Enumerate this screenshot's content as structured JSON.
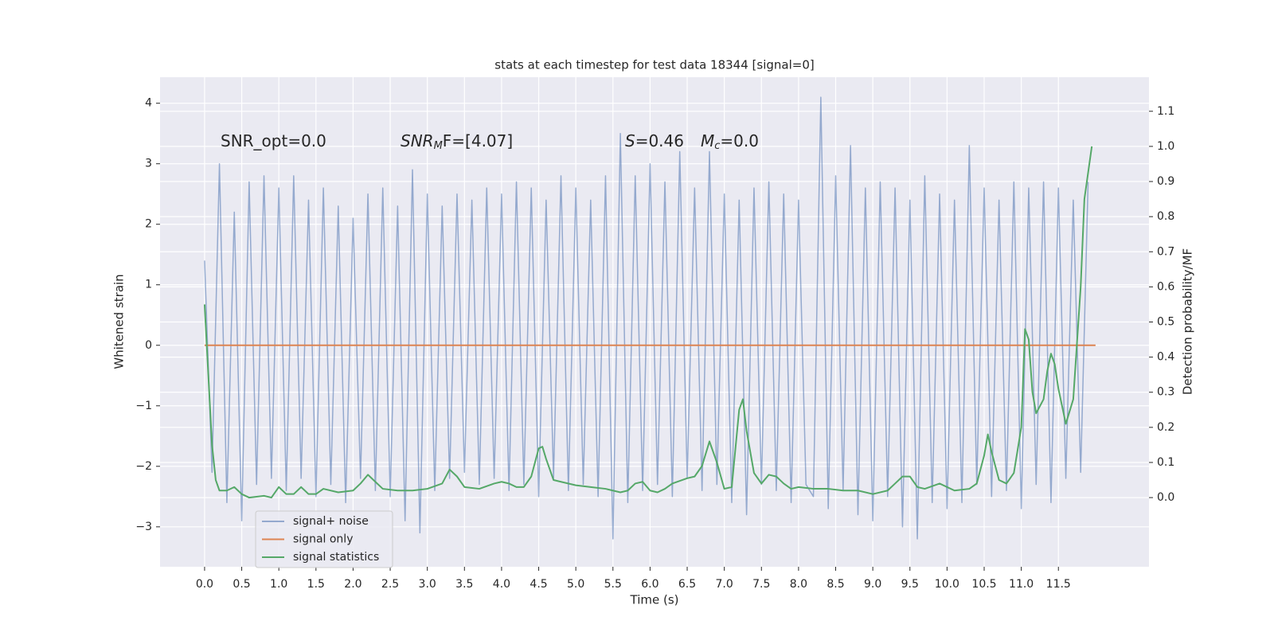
{
  "chart_data": {
    "type": "line",
    "title": "stats at each timestep for test data 18344 [signal=0]",
    "xlabel": "Time (s)",
    "ylabel": "Whitened strain",
    "y2label": "Detection probability/MF",
    "xlim": [
      -0.6,
      12.72
    ],
    "ylim": [
      -3.66,
      4.43
    ],
    "y2lim": [
      -0.197,
      1.197
    ],
    "xticks": [
      {
        "value": 0,
        "label": "0.0"
      },
      {
        "value": 0.5,
        "label": "0.5"
      },
      {
        "value": 1,
        "label": "1.0"
      },
      {
        "value": 1.5,
        "label": "1.5"
      },
      {
        "value": 2,
        "label": "2.0"
      },
      {
        "value": 2.5,
        "label": "2.5"
      },
      {
        "value": 3,
        "label": "3.0"
      },
      {
        "value": 3.5,
        "label": "3.5"
      },
      {
        "value": 4,
        "label": "4.0"
      },
      {
        "value": 4.5,
        "label": "4.5"
      },
      {
        "value": 5,
        "label": "5.0"
      },
      {
        "value": 5.5,
        "label": "5.5"
      },
      {
        "value": 6,
        "label": "6.0"
      },
      {
        "value": 6.5,
        "label": "6.5"
      },
      {
        "value": 7,
        "label": "7.0"
      },
      {
        "value": 7.5,
        "label": "7.5"
      },
      {
        "value": 8,
        "label": "8.0"
      },
      {
        "value": 8.5,
        "label": "8.5"
      },
      {
        "value": 9,
        "label": "9.0"
      },
      {
        "value": 9.5,
        "label": "9.5"
      },
      {
        "value": 10,
        "label": "10.0"
      },
      {
        "value": 10.5,
        "label": "10.5"
      },
      {
        "value": 11,
        "label": "11.0"
      },
      {
        "value": 11.5,
        "label": "11.5"
      }
    ],
    "yticks": [
      {
        "value": -3,
        "label": "−3"
      },
      {
        "value": -2,
        "label": "−2"
      },
      {
        "value": -1,
        "label": "−1"
      },
      0,
      1,
      2,
      3,
      4
    ],
    "y2ticks": [
      {
        "value": 0,
        "label": "0.0"
      },
      {
        "value": 0.1,
        "label": "0.1"
      },
      {
        "value": 0.2,
        "label": "0.2"
      },
      {
        "value": 0.3,
        "label": "0.3"
      },
      {
        "value": 0.4,
        "label": "0.4"
      },
      {
        "value": 0.5,
        "label": "0.5"
      },
      {
        "value": 0.6,
        "label": "0.6"
      },
      {
        "value": 0.7,
        "label": "0.7"
      },
      {
        "value": 0.8,
        "label": "0.8"
      },
      {
        "value": 0.9,
        "label": "0.9"
      },
      {
        "value": 1.0,
        "label": "1.0"
      },
      {
        "value": 1.1,
        "label": "1.1"
      }
    ],
    "grid": true,
    "legend": "lower left",
    "annotations": [
      {
        "base": "SNR_opt=0.0"
      },
      {
        "base": "SNR",
        "sub": "M",
        "rest": "F=[4.07]"
      },
      {
        "base": "S",
        "rest": "=0.46"
      },
      {
        "base": "M",
        "sub": "c",
        "rest": "=0.0"
      }
    ],
    "series": [
      {
        "name": "signal+ noise",
        "color": "#4c72b0",
        "x": [
          0.0,
          0.1,
          0.2,
          0.3,
          0.4,
          0.5,
          0.6,
          0.7,
          0.8,
          0.9,
          1.0,
          1.1,
          1.2,
          1.3,
          1.4,
          1.5,
          1.6,
          1.7,
          1.8,
          1.9,
          2.0,
          2.1,
          2.2,
          2.3,
          2.4,
          2.5,
          2.6,
          2.7,
          2.8,
          2.9,
          3.0,
          3.1,
          3.2,
          3.3,
          3.4,
          3.5,
          3.6,
          3.7,
          3.8,
          3.9,
          4.0,
          4.1,
          4.2,
          4.3,
          4.4,
          4.5,
          4.6,
          4.7,
          4.8,
          4.9,
          5.0,
          5.1,
          5.2,
          5.3,
          5.4,
          5.5,
          5.6,
          5.7,
          5.8,
          5.9,
          6.0,
          6.1,
          6.2,
          6.3,
          6.4,
          6.5,
          6.6,
          6.7,
          6.8,
          6.9,
          7.0,
          7.1,
          7.2,
          7.3,
          7.4,
          7.5,
          7.6,
          7.7,
          7.8,
          7.9,
          8.0,
          8.1,
          8.2,
          8.3,
          8.4,
          8.5,
          8.6,
          8.7,
          8.8,
          8.9,
          9.0,
          9.1,
          9.2,
          9.3,
          9.4,
          9.5,
          9.6,
          9.7,
          9.8,
          9.9,
          10.0,
          10.1,
          10.2,
          10.3,
          10.4,
          10.5,
          10.6,
          10.7,
          10.8,
          10.9,
          11.0,
          11.1,
          11.2,
          11.3,
          11.4,
          11.5,
          11.6,
          11.7,
          11.8,
          11.9
        ],
        "values": [
          1.4,
          -2.1,
          3.0,
          -2.6,
          2.2,
          -2.9,
          2.7,
          -2.3,
          2.8,
          -2.2,
          2.6,
          -2.4,
          2.8,
          -2.2,
          2.4,
          -2.5,
          2.6,
          -2.3,
          2.3,
          -2.6,
          2.1,
          -2.2,
          2.5,
          -2.4,
          2.6,
          -2.5,
          2.3,
          -2.9,
          2.9,
          -3.1,
          2.5,
          -2.4,
          2.3,
          -2.2,
          2.5,
          -2.1,
          2.4,
          -2.3,
          2.6,
          -2.2,
          2.5,
          -2.4,
          2.7,
          -2.3,
          2.6,
          -2.5,
          2.4,
          -2.2,
          2.8,
          -2.4,
          2.6,
          -2.3,
          2.4,
          -2.5,
          2.8,
          -3.2,
          3.5,
          -2.6,
          2.8,
          -2.4,
          3.0,
          -2.3,
          2.7,
          -2.5,
          3.2,
          -2.2,
          2.6,
          -2.4,
          3.2,
          -2.3,
          2.5,
          -2.6,
          2.4,
          -2.8,
          2.6,
          -2.3,
          2.7,
          -2.4,
          2.5,
          -2.6,
          2.4,
          -2.3,
          -2.5,
          4.1,
          -2.7,
          2.8,
          -2.4,
          3.3,
          -2.8,
          2.6,
          -2.9,
          2.7,
          -2.5,
          2.6,
          -3.0,
          2.4,
          -3.2,
          2.8,
          -2.6,
          2.5,
          -2.7,
          2.4,
          -2.6,
          3.3,
          -2.3,
          2.6,
          -2.5,
          2.4,
          -2.4,
          2.7,
          -2.7,
          2.6,
          -2.3,
          2.7,
          -2.6,
          2.6,
          -2.2,
          2.4,
          -2.1,
          2.7
        ]
      },
      {
        "name": "signal only",
        "color": "#dd8452",
        "x": [
          0.0,
          12.0
        ],
        "values": [
          0,
          0
        ]
      },
      {
        "name": "signal statistics",
        "color": "#55a868",
        "axis": "y2",
        "x": [
          0.0,
          0.05,
          0.1,
          0.15,
          0.2,
          0.3,
          0.4,
          0.5,
          0.6,
          0.8,
          0.9,
          1.0,
          1.1,
          1.2,
          1.3,
          1.4,
          1.5,
          1.6,
          1.8,
          2.0,
          2.1,
          2.2,
          2.3,
          2.4,
          2.6,
          2.8,
          3.0,
          3.2,
          3.3,
          3.4,
          3.5,
          3.7,
          3.9,
          4.0,
          4.1,
          4.2,
          4.3,
          4.4,
          4.5,
          4.55,
          4.6,
          4.7,
          4.8,
          5.0,
          5.2,
          5.4,
          5.6,
          5.7,
          5.8,
          5.9,
          6.0,
          6.1,
          6.2,
          6.3,
          6.5,
          6.6,
          6.7,
          6.8,
          6.9,
          7.0,
          7.1,
          7.2,
          7.25,
          7.3,
          7.4,
          7.5,
          7.6,
          7.7,
          7.8,
          7.9,
          8.0,
          8.2,
          8.4,
          8.6,
          8.8,
          9.0,
          9.2,
          9.3,
          9.4,
          9.5,
          9.6,
          9.7,
          9.9,
          10.1,
          10.3,
          10.4,
          10.5,
          10.55,
          10.6,
          10.7,
          10.8,
          10.9,
          11.0,
          11.05,
          11.1,
          11.15,
          11.2,
          11.3,
          11.35,
          11.4,
          11.45,
          11.5,
          11.6,
          11.7,
          11.8,
          11.85,
          11.95
        ],
        "values": [
          0.55,
          0.35,
          0.15,
          0.05,
          0.02,
          0.02,
          0.03,
          0.01,
          0.0,
          0.005,
          0.0,
          0.03,
          0.01,
          0.01,
          0.03,
          0.01,
          0.01,
          0.025,
          0.015,
          0.02,
          0.04,
          0.065,
          0.045,
          0.025,
          0.02,
          0.02,
          0.025,
          0.04,
          0.08,
          0.06,
          0.03,
          0.025,
          0.04,
          0.045,
          0.04,
          0.03,
          0.03,
          0.06,
          0.14,
          0.145,
          0.11,
          0.05,
          0.045,
          0.035,
          0.03,
          0.025,
          0.015,
          0.02,
          0.04,
          0.045,
          0.02,
          0.015,
          0.025,
          0.04,
          0.055,
          0.06,
          0.09,
          0.16,
          0.1,
          0.025,
          0.03,
          0.25,
          0.28,
          0.19,
          0.07,
          0.04,
          0.065,
          0.06,
          0.04,
          0.025,
          0.03,
          0.025,
          0.025,
          0.02,
          0.02,
          0.01,
          0.02,
          0.04,
          0.06,
          0.06,
          0.03,
          0.025,
          0.04,
          0.02,
          0.025,
          0.04,
          0.12,
          0.18,
          0.13,
          0.05,
          0.04,
          0.07,
          0.2,
          0.48,
          0.45,
          0.3,
          0.24,
          0.28,
          0.36,
          0.41,
          0.38,
          0.31,
          0.21,
          0.28,
          0.6,
          0.85,
          1.0
        ]
      }
    ]
  }
}
